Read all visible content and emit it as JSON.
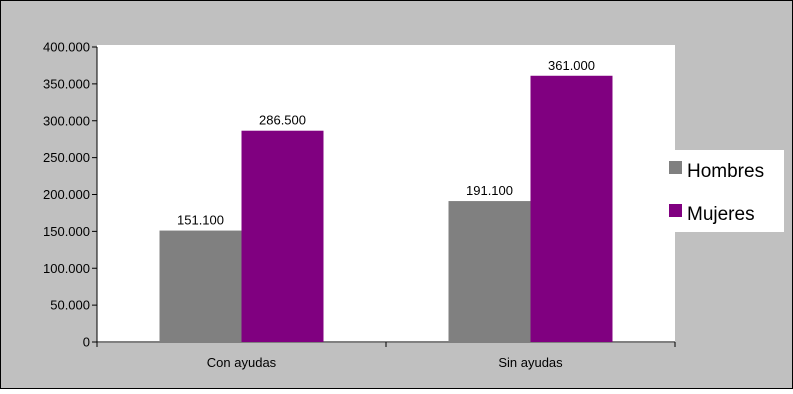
{
  "colors": {
    "outer_background": "#c0c0c0",
    "plot_background": "#ffffff",
    "border": "#000000",
    "series_hombres": "#808080",
    "series_mujeres": "#800080"
  },
  "chart_data": {
    "type": "bar",
    "categories": [
      "Con ayudas",
      "Sin ayudas"
    ],
    "series": [
      {
        "name": "Hombres",
        "values": [
          151100,
          191100
        ],
        "labels": [
          "151.100",
          "191.100"
        ],
        "color": "#808080"
      },
      {
        "name": "Mujeres",
        "values": [
          286500,
          361000
        ],
        "labels": [
          "286.500",
          "361.000"
        ],
        "color": "#800080"
      }
    ],
    "ylim": [
      0,
      400000
    ],
    "yticks": [
      0,
      50000,
      100000,
      150000,
      200000,
      250000,
      300000,
      350000,
      400000
    ],
    "ytick_labels": [
      "0",
      "50.000",
      "100.000",
      "150.000",
      "200.000",
      "250.000",
      "300.000",
      "350.000",
      "400.000"
    ],
    "grid": false,
    "legend_position": "right"
  }
}
